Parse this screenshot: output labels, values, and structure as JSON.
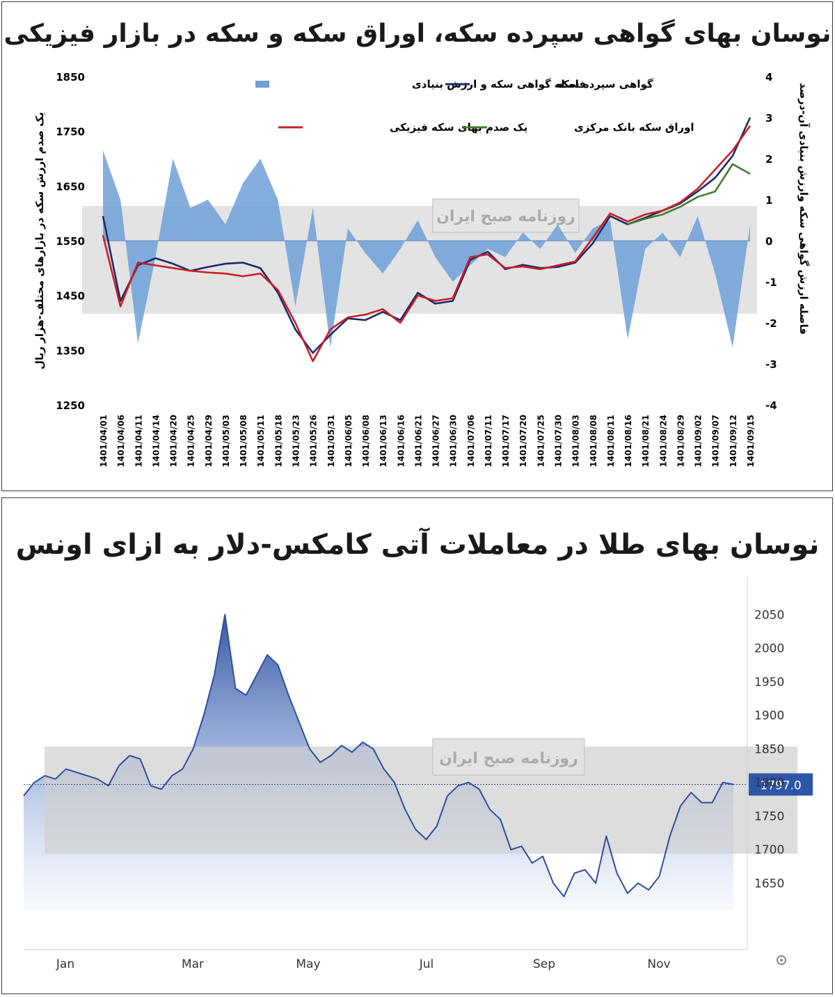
{
  "chart_data": [
    {
      "type": "line",
      "title": "نوسان بهای گواهی سپرده سکه، اوراق سکه و سکه در بازار فیزیکی",
      "ylabel": "یک صدم ارزش سکه در بازارهای مختلف-هزار ریال",
      "y2label": "فاصله ارزش گواهی سکه وارزش بنیادی آن-درصد",
      "ylim": [
        1250,
        1850
      ],
      "y_ticks": [
        "1850",
        "1750",
        "1650",
        "1550",
        "1450",
        "1350",
        "1250"
      ],
      "y2lim": [
        -4,
        4
      ],
      "y2_ticks": [
        "4",
        "3",
        "2",
        "1",
        "0",
        "-1",
        "-2",
        "-3",
        "-4"
      ],
      "categories": [
        "1401/04/01",
        "1401/04/06",
        "1401/04/11",
        "1401/04/14",
        "1401/04/20",
        "1401/04/25",
        "1401/04/29",
        "1401/05/03",
        "1401/05/08",
        "1401/05/11",
        "1401/05/18",
        "1401/05/23",
        "1401/05/26",
        "1401/05/31",
        "1401/06/05",
        "1401/06/08",
        "1401/06/13",
        "1401/06/16",
        "1401/06/21",
        "1401/06/27",
        "1401/06/30",
        "1401/07/06",
        "1401/07/11",
        "1401/07/17",
        "1401/07/20",
        "1401/07/25",
        "1401/07/30",
        "1401/08/03",
        "1401/08/08",
        "1401/08/11",
        "1401/08/16",
        "1401/08/21",
        "1401/08/24",
        "1401/08/29",
        "1401/09/02",
        "1401/09/07",
        "1401/09/12",
        "1401/09/15"
      ],
      "legend_position": "top",
      "series": [
        {
          "name": "فاصله گواهی سکه و ارزش بنیادی",
          "kind": "area",
          "axis": "right",
          "color": "#6fa0d8",
          "values": [
            2.2,
            1.0,
            -2.5,
            -0.4,
            2.0,
            0.8,
            1.0,
            0.4,
            1.4,
            2.0,
            1.0,
            -1.6,
            0.8,
            -2.6,
            0.3,
            -0.3,
            -0.8,
            -0.2,
            0.5,
            -0.4,
            -1.0,
            -0.6,
            -0.2,
            -0.4,
            0.2,
            -0.2,
            0.4,
            -0.3,
            0.3,
            0.5,
            -2.4,
            -0.2,
            0.2,
            -0.4,
            0.6,
            -0.8,
            -2.6,
            0.4
          ]
        },
        {
          "name": "گواهی سپرده سکه",
          "kind": "line",
          "axis": "left",
          "color": "#1b2a6b",
          "values": [
            1595,
            1440,
            1505,
            1518,
            1508,
            1495,
            1502,
            1508,
            1510,
            1500,
            1455,
            1388,
            1345,
            1378,
            1408,
            1405,
            1420,
            1405,
            1455,
            1435,
            1440,
            1515,
            1530,
            1498,
            1506,
            1500,
            1502,
            1510,
            1545,
            1595,
            1580,
            1592,
            1605,
            1618,
            1640,
            1665,
            1705,
            1775
          ]
        },
        {
          "name": "یک صدم بهای سکه فیزیکی",
          "kind": "line",
          "axis": "left",
          "color": "#c91f25",
          "values": [
            1560,
            1430,
            1510,
            1505,
            1500,
            1495,
            1492,
            1490,
            1485,
            1490,
            1460,
            1400,
            1330,
            1388,
            1410,
            1415,
            1425,
            1400,
            1450,
            1440,
            1445,
            1520,
            1525,
            1500,
            1503,
            1498,
            1505,
            1512,
            1555,
            1600,
            1585,
            1598,
            1605,
            1620,
            1645,
            1680,
            1715,
            1760
          ]
        },
        {
          "name": "اوراق سکه بانک مرکزی",
          "kind": "line",
          "axis": "left",
          "color": "#3f7d2e",
          "values": [
            null,
            null,
            null,
            null,
            null,
            null,
            null,
            null,
            null,
            null,
            null,
            null,
            null,
            null,
            null,
            null,
            null,
            null,
            null,
            null,
            null,
            null,
            null,
            null,
            null,
            null,
            null,
            null,
            null,
            null,
            1580,
            1590,
            1598,
            1612,
            1630,
            1640,
            1690,
            1672
          ]
        }
      ]
    },
    {
      "type": "area",
      "title": "نوسان  بهای طلا در معاملات آتی کامکس-دلار به ازای اونس",
      "ylim": [
        1610,
        2070
      ],
      "y_ticks": [
        "2050",
        "2000",
        "1950",
        "1900",
        "1850",
        "1800",
        "1750",
        "1700",
        "1650"
      ],
      "x_ticks": [
        "Jan",
        "Mar",
        "May",
        "Jul",
        "Sep",
        "Nov"
      ],
      "last_value_label": "1797.0",
      "series": [
        {
          "name": "",
          "color": "#2d4f9f",
          "values": [
            1780,
            1800,
            1810,
            1805,
            1820,
            1815,
            1810,
            1805,
            1795,
            1825,
            1840,
            1835,
            1795,
            1790,
            1810,
            1820,
            1850,
            1900,
            1960,
            2050,
            1940,
            1930,
            1960,
            1990,
            1975,
            1930,
            1890,
            1850,
            1830,
            1840,
            1855,
            1845,
            1860,
            1850,
            1820,
            1800,
            1760,
            1730,
            1715,
            1735,
            1780,
            1795,
            1800,
            1790,
            1760,
            1745,
            1700,
            1705,
            1680,
            1690,
            1650,
            1630,
            1665,
            1670,
            1650,
            1720,
            1665,
            1635,
            1650,
            1640,
            1660,
            1720,
            1765,
            1785,
            1770,
            1770,
            1800,
            1797
          ]
        }
      ]
    }
  ],
  "watermark": {
    "text": "روزنامه صبح ایران"
  },
  "settings_icon": "gear-icon"
}
